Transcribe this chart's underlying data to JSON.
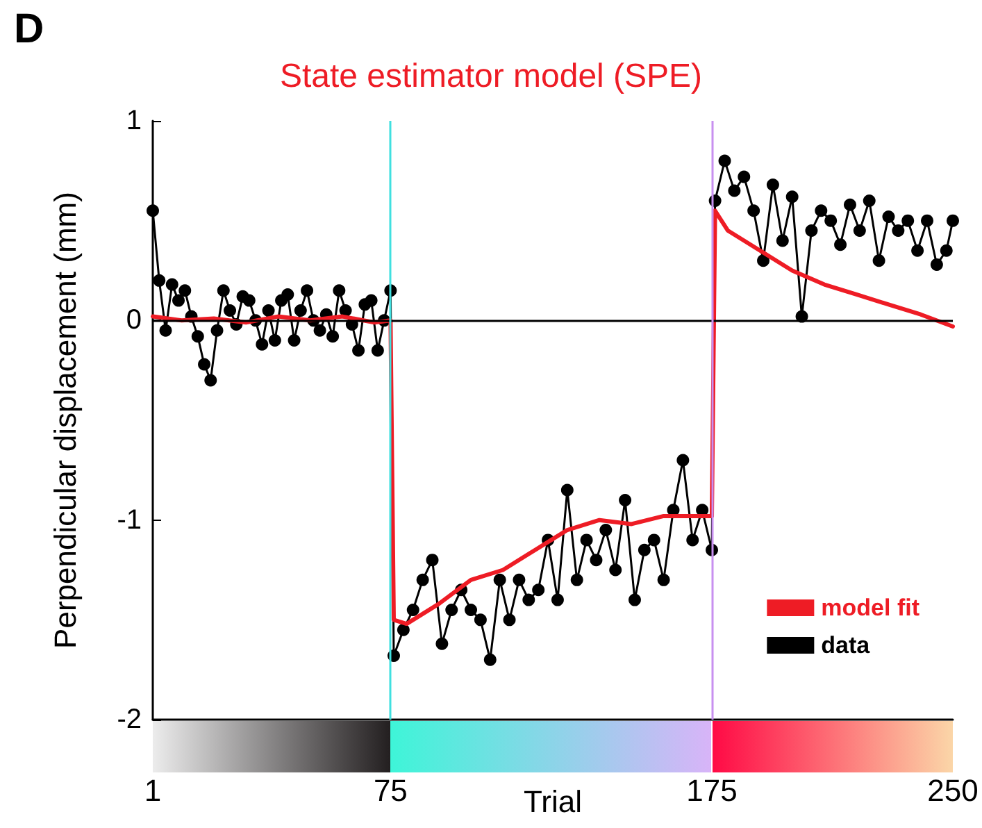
{
  "chart_data": {
    "type": "line",
    "title": "State estimator model (SPE)",
    "xlabel": "Trial",
    "ylabel": "Perpendicular displacement (mm)",
    "annotations": [
      "D"
    ],
    "xlim": [
      1,
      250
    ],
    "xticks": [
      1,
      75,
      175,
      250
    ],
    "ylim": [
      -2,
      1
    ],
    "yticks": [
      -2,
      -1,
      0,
      1
    ],
    "grid": false,
    "legend": "bottom right",
    "ref_lines": [
      {
        "axis": "y",
        "value": 0,
        "color": "#000000"
      },
      {
        "axis": "x",
        "value": 75,
        "color": "#40e0e0"
      },
      {
        "axis": "x",
        "value": 175,
        "color": "#c890f0"
      }
    ],
    "series": [
      {
        "name": "model fit",
        "color": "#ee1c25",
        "marker": "none",
        "x": [
          1,
          10,
          20,
          30,
          40,
          50,
          60,
          70,
          75,
          76,
          80,
          90,
          100,
          110,
          120,
          125,
          130,
          140,
          150,
          160,
          170,
          175,
          176,
          180,
          190,
          200,
          210,
          220,
          230,
          240,
          250
        ],
        "values": [
          0.02,
          0.0,
          0.01,
          -0.01,
          0.02,
          0.0,
          0.02,
          -0.01,
          0.0,
          -1.5,
          -1.52,
          -1.42,
          -1.3,
          -1.25,
          -1.15,
          -1.1,
          -1.05,
          -1.0,
          -1.02,
          -0.98,
          -0.98,
          -0.98,
          0.55,
          0.45,
          0.35,
          0.25,
          0.18,
          0.13,
          0.08,
          0.03,
          -0.03
        ]
      },
      {
        "name": "data",
        "color": "#000000",
        "marker": "circle",
        "x": [
          1,
          3,
          5,
          7,
          9,
          11,
          13,
          15,
          17,
          19,
          21,
          23,
          25,
          27,
          29,
          31,
          33,
          35,
          37,
          39,
          41,
          43,
          45,
          47,
          49,
          51,
          53,
          55,
          57,
          59,
          61,
          63,
          65,
          67,
          69,
          71,
          73,
          75,
          76,
          79,
          82,
          85,
          88,
          91,
          94,
          97,
          100,
          103,
          106,
          109,
          112,
          115,
          118,
          121,
          124,
          127,
          130,
          133,
          136,
          139,
          142,
          145,
          148,
          151,
          154,
          157,
          160,
          163,
          166,
          169,
          172,
          175,
          176,
          179,
          182,
          185,
          188,
          191,
          194,
          197,
          200,
          203,
          206,
          209,
          212,
          215,
          218,
          221,
          224,
          227,
          230,
          233,
          236,
          239,
          242,
          245,
          248,
          250
        ],
        "values": [
          0.55,
          0.2,
          -0.05,
          0.18,
          0.1,
          0.15,
          0.02,
          -0.08,
          -0.22,
          -0.3,
          -0.05,
          0.15,
          0.05,
          -0.02,
          0.12,
          0.1,
          0.0,
          -0.12,
          0.05,
          -0.1,
          0.1,
          0.13,
          -0.1,
          0.05,
          0.15,
          0.0,
          -0.05,
          0.03,
          -0.08,
          0.15,
          0.05,
          -0.02,
          -0.15,
          0.08,
          0.1,
          -0.15,
          0.0,
          0.15,
          -1.68,
          -1.55,
          -1.45,
          -1.3,
          -1.2,
          -1.62,
          -1.45,
          -1.35,
          -1.45,
          -1.5,
          -1.7,
          -1.3,
          -1.5,
          -1.3,
          -1.4,
          -1.35,
          -1.1,
          -1.4,
          -0.85,
          -1.3,
          -1.1,
          -1.2,
          -1.05,
          -1.25,
          -0.9,
          -1.4,
          -1.15,
          -1.1,
          -1.3,
          -0.95,
          -0.7,
          -1.1,
          -0.95,
          -1.15,
          0.6,
          0.8,
          0.65,
          0.72,
          0.55,
          0.3,
          0.68,
          0.4,
          0.62,
          0.02,
          0.45,
          0.55,
          0.5,
          0.38,
          0.58,
          0.45,
          0.6,
          0.3,
          0.52,
          0.45,
          0.5,
          0.35,
          0.5,
          0.28,
          0.35,
          0.5
        ]
      }
    ]
  }
}
